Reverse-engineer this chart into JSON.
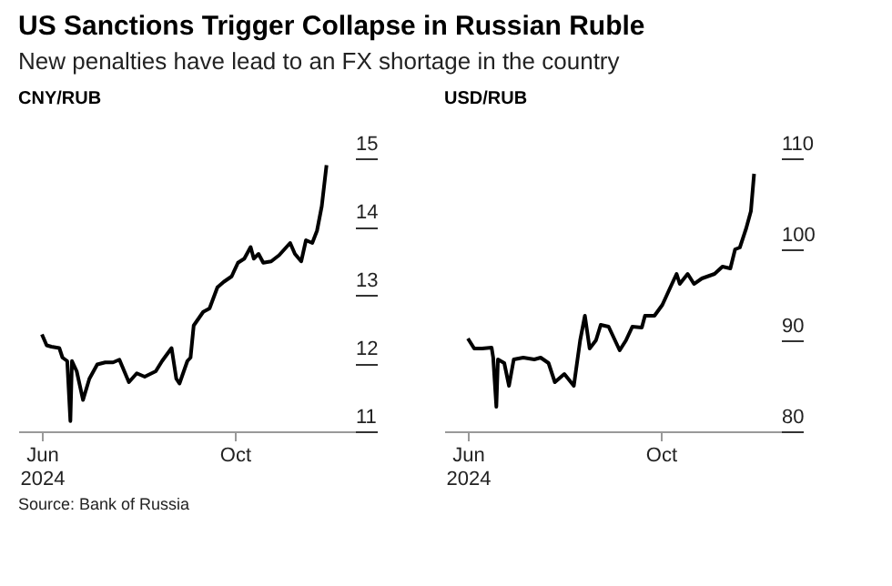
{
  "chart_data": [
    {
      "type": "line",
      "title": "US Sanctions Trigger Collapse in Russian Ruble",
      "subtitle": "New penalties have lead to an FX shortage in the country",
      "ylabel": "CNY/RUB",
      "annotations": [
        "Source: Bank of Russia"
      ],
      "grid": false,
      "x": [
        "2024-06-01",
        "2024-06-04",
        "2024-06-07",
        "2024-06-12",
        "2024-06-14",
        "2024-06-17",
        "2024-06-19",
        "2024-06-20",
        "2024-06-23",
        "2024-06-27",
        "2024-07-01",
        "2024-07-06",
        "2024-07-11",
        "2024-07-16",
        "2024-07-20",
        "2024-07-26",
        "2024-07-31",
        "2024-08-05",
        "2024-08-12",
        "2024-08-16",
        "2024-08-22",
        "2024-08-25",
        "2024-08-27",
        "2024-09-01",
        "2024-09-03",
        "2024-09-05",
        "2024-09-11",
        "2024-09-15",
        "2024-09-20",
        "2024-09-24",
        "2024-09-29",
        "2024-10-03",
        "2024-10-07",
        "2024-10-11",
        "2024-10-13",
        "2024-10-16",
        "2024-10-19",
        "2024-10-24",
        "2024-10-29",
        "2024-11-05",
        "2024-11-08",
        "2024-11-12",
        "2024-11-15",
        "2024-11-19",
        "2024-11-22",
        "2024-11-25",
        "2024-11-28"
      ],
      "series": [
        {
          "color": "#000000",
          "values": [
            12.42,
            12.26,
            12.24,
            12.22,
            12.08,
            12.03,
            11.15,
            12.03,
            11.88,
            11.46,
            11.77,
            11.98,
            12.01,
            12.01,
            12.05,
            11.72,
            11.85,
            11.8,
            11.88,
            12.03,
            12.22,
            11.77,
            11.7,
            12.03,
            12.08,
            12.55,
            12.75,
            12.8,
            13.11,
            13.19,
            13.27,
            13.47,
            13.53,
            13.7,
            13.53,
            13.6,
            13.47,
            13.49,
            13.58,
            13.76,
            13.6,
            13.49,
            13.8,
            13.76,
            13.94,
            14.3,
            14.9
          ]
        }
      ],
      "xlim": [
        "2024-05-17",
        "2024-12-16"
      ],
      "xticks": [
        {
          "value": "2024-06-01",
          "label": "Jun 2024"
        },
        {
          "value": "2024-10-01",
          "label": "Oct"
        }
      ],
      "ylim": [
        11,
        15
      ],
      "yticks": [
        11,
        12,
        13,
        14,
        15
      ]
    },
    {
      "type": "line",
      "ylabel": "USD/RUB",
      "grid": false,
      "x": [
        "2024-06-01",
        "2024-06-05",
        "2024-06-10",
        "2024-06-16",
        "2024-06-17",
        "2024-06-19",
        "2024-06-20",
        "2024-06-24",
        "2024-06-27",
        "2024-06-30",
        "2024-07-06",
        "2024-07-13",
        "2024-07-17",
        "2024-07-22",
        "2024-07-26",
        "2024-08-01",
        "2024-08-07",
        "2024-08-11",
        "2024-08-14",
        "2024-08-17",
        "2024-08-21",
        "2024-08-24",
        "2024-08-29",
        "2024-09-05",
        "2024-09-09",
        "2024-09-13",
        "2024-09-19",
        "2024-09-21",
        "2024-09-27",
        "2024-10-02",
        "2024-10-07",
        "2024-10-11",
        "2024-10-13",
        "2024-10-18",
        "2024-10-22",
        "2024-10-27",
        "2024-11-04",
        "2024-11-09",
        "2024-11-14",
        "2024-11-17",
        "2024-11-20",
        "2024-11-24",
        "2024-11-27",
        "2024-11-29"
      ],
      "series": [
        {
          "color": "#000000",
          "values": [
            90.2,
            89.1,
            89.1,
            89.2,
            88.1,
            82.7,
            87.9,
            87.5,
            85,
            87.9,
            88.1,
            87.9,
            88.1,
            87.5,
            85.4,
            86.3,
            85,
            90,
            92.7,
            89.1,
            90,
            91.7,
            91.5,
            88.9,
            90,
            91.5,
            91.4,
            92.7,
            92.7,
            93.9,
            95.8,
            97.3,
            96.2,
            97.3,
            96.2,
            96.8,
            97.3,
            98.1,
            97.9,
            100,
            100.2,
            102.3,
            104.2,
            108.3
          ]
        }
      ],
      "xlim": [
        "2024-05-17",
        "2024-12-16"
      ],
      "xticks": [
        {
          "value": "2024-06-01",
          "label": "Jun 2024"
        },
        {
          "value": "2024-10-01",
          "label": "Oct"
        }
      ],
      "ylim": [
        80,
        110
      ],
      "yticks": [
        80,
        90,
        100,
        110
      ]
    }
  ]
}
